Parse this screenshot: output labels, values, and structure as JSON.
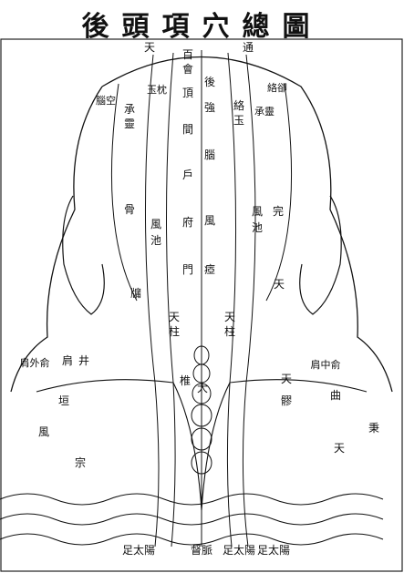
{
  "title": "後頭項穴總圖",
  "points": [
    {
      "text": "百"
    },
    {
      "text": "會"
    },
    {
      "text": "後"
    },
    {
      "text": "頂"
    },
    {
      "text": "強"
    },
    {
      "text": "間"
    },
    {
      "text": "腦"
    },
    {
      "text": "戶"
    },
    {
      "text": "風"
    },
    {
      "text": "府"
    },
    {
      "text": "瘂"
    },
    {
      "text": "門"
    },
    {
      "text": "天"
    },
    {
      "text": "通"
    },
    {
      "text": "絡卻"
    },
    {
      "text": "玉枕"
    },
    {
      "text": "絡"
    },
    {
      "text": "玉"
    },
    {
      "text": "承靈"
    },
    {
      "text": "腦空"
    },
    {
      "text": "承"
    },
    {
      "text": "靈"
    },
    {
      "text": "風"
    },
    {
      "text": "池"
    },
    {
      "text": "風"
    },
    {
      "text": "池"
    },
    {
      "text": "完"
    },
    {
      "text": "骨"
    },
    {
      "text": "天"
    },
    {
      "text": "牖"
    },
    {
      "text": "天"
    },
    {
      "text": "柱"
    },
    {
      "text": "天"
    },
    {
      "text": "柱"
    },
    {
      "text": "大"
    },
    {
      "text": "椎"
    },
    {
      "text": "肩"
    },
    {
      "text": "井"
    },
    {
      "text": "肩中俞"
    },
    {
      "text": "肩外俞"
    },
    {
      "text": "天"
    },
    {
      "text": "髎"
    },
    {
      "text": "曲"
    },
    {
      "text": "垣"
    },
    {
      "text": "秉"
    },
    {
      "text": "風"
    },
    {
      "text": "天"
    },
    {
      "text": "宗"
    },
    {
      "text": "足太陽"
    },
    {
      "text": "督脈"
    },
    {
      "text": "足太陽"
    },
    {
      "text": "足太陽"
    }
  ]
}
